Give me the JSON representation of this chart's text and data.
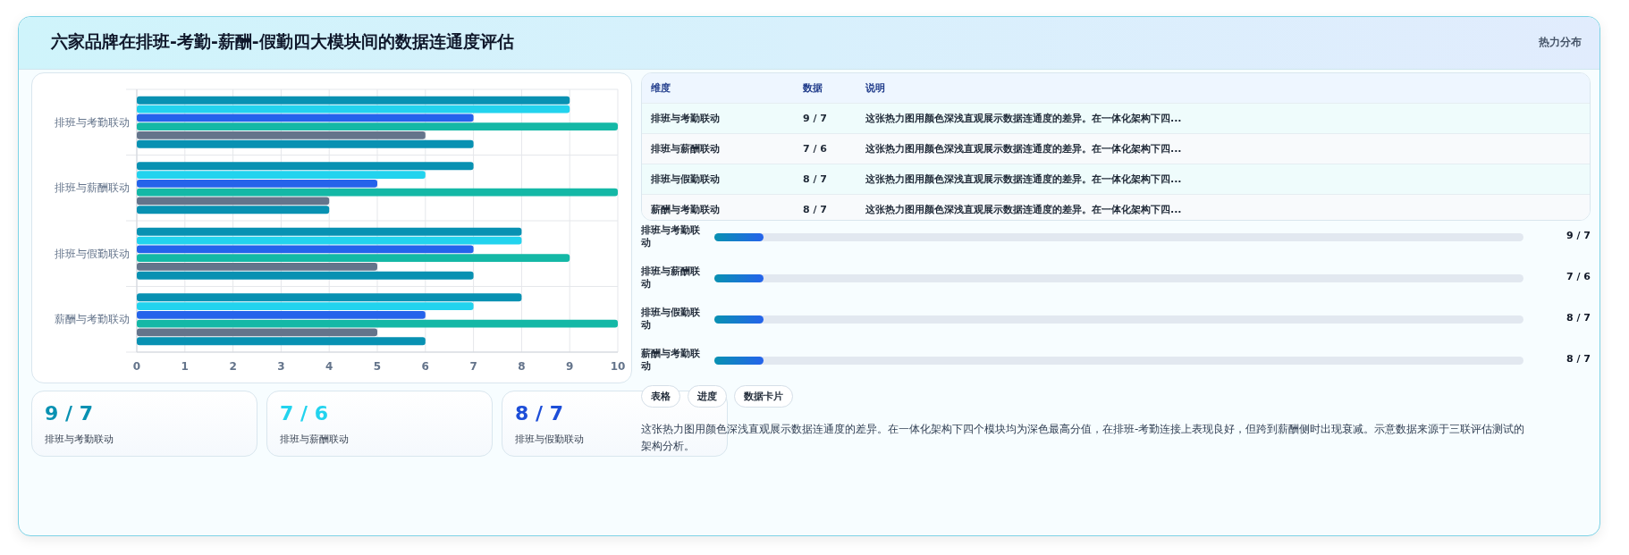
{
  "chart_data": [
    {
      "type": "other",
      "title": "六家品牌在排班-考勤-薪酬-假勤四大模块间的数据连通度评估",
      "subtitle": "热力分布"
    },
    {
      "type": "bar",
      "orientation": "horizontal",
      "categories": [
        "排班与考勤联动",
        "排班与薪酬联动",
        "排班与假勤联动",
        "薪酬与考勤联动"
      ],
      "series": [
        {
          "color": "#0891b2",
          "values": [
            9,
            7,
            8,
            8
          ]
        },
        {
          "color": "#22d3ee",
          "values": [
            9,
            6,
            8,
            7
          ]
        },
        {
          "color": "#2563eb",
          "values": [
            7,
            5,
            7,
            6
          ]
        },
        {
          "color": "#14b8a6",
          "values": [
            10,
            10,
            9,
            10
          ]
        },
        {
          "color": "#64748b",
          "values": [
            6,
            4,
            5,
            5
          ]
        },
        {
          "color": "#0891b2",
          "values": [
            7,
            4,
            7,
            6
          ]
        }
      ],
      "xlim": [
        0,
        10
      ],
      "xticks": [
        0,
        1,
        2,
        3,
        4,
        5,
        6,
        7,
        8,
        9,
        10
      ],
      "grid": true
    },
    {
      "type": "other",
      "categories": [
        "排班与考勤联动",
        "排班与薪酬联动",
        "排班与假勤联动",
        "薪酬与考勤联动"
      ],
      "value_labels": [
        "9 / 7",
        "7 / 6",
        "8 / 7",
        "8 / 7"
      ],
      "annotations": [
        "维度",
        "数据",
        "说明",
        "这张热力图用颜色深浅直观展示数据连通度的差异。在一体化架构下四...",
        "这张热力图用颜色深浅直观展示数据连通度的差异。在一体化架构下四...",
        "这张热力图用颜色深浅直观展示数据连通度的差异。在一体化架构下四...",
        "这张热力图用颜色深浅直观展示数据连通度的差异。在一体化架构下四..."
      ]
    },
    {
      "type": "other",
      "categories": [
        "排班与考勤联动",
        "排班与薪酬联动",
        "排班与假勤联动",
        "薪酬与考勤联动"
      ],
      "value_labels": [
        "9 / 7",
        "7 / 6",
        "8 / 7",
        "8 / 7"
      ]
    },
    {
      "type": "other",
      "categories": [
        "排班与考勤联动",
        "排班与薪酬联动",
        "排班与假勤联动"
      ],
      "value_labels": [
        "9 / 7",
        "7 / 6",
        "8 / 7"
      ]
    },
    {
      "type": "other",
      "annotations": [
        "表格",
        "进度",
        "数据卡片",
        "这张热力图用颜色深浅直观展示数据连通度的差异。在一体化架构下四个模块均为深色最高分值，在排班-考勤连接上表现良好，但跨到薪酬侧时出现衰减。示意数据来源于三联评估测试的架构分析。"
      ]
    }
  ]
}
